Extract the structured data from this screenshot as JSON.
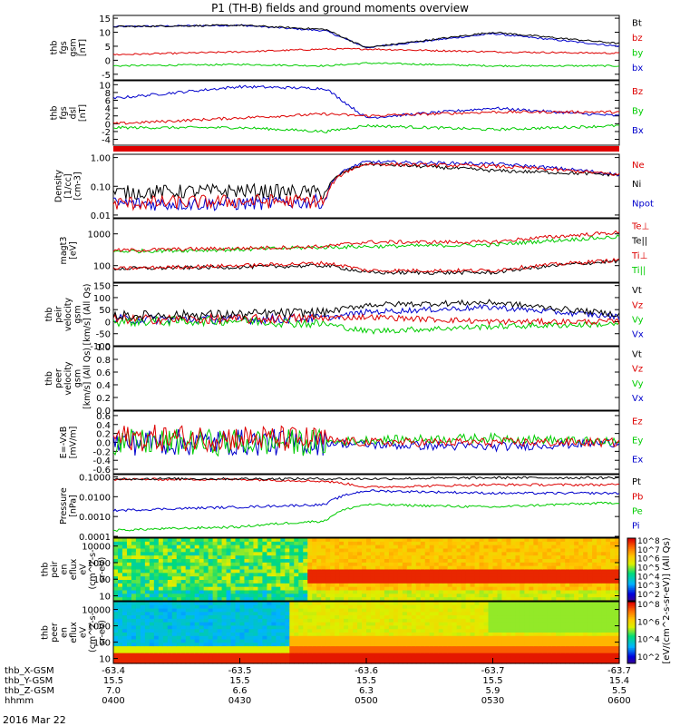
{
  "title": "P1 (TH-B) fields and ground moments overview",
  "date": "2016 Mar 22",
  "time_axis": {
    "ticks": [
      "0400",
      "0430",
      "0500",
      "0530",
      "0600"
    ],
    "rows": [
      {
        "label": "thb_X-GSM",
        "values": [
          "-63.4",
          "-63.5",
          "-63.6",
          "-63.7",
          "-63.7"
        ]
      },
      {
        "label": "thb_Y-GSM",
        "values": [
          "15.5",
          "15.5",
          "15.5",
          "15.5",
          "15.4"
        ]
      },
      {
        "label": "thb_Z-GSM",
        "values": [
          "7.0",
          "6.6",
          "6.3",
          "5.9",
          "5.5"
        ]
      },
      {
        "label": "hhmm",
        "values": [
          "0400",
          "0430",
          "0500",
          "0530",
          "0600"
        ]
      }
    ]
  },
  "colors": {
    "black": "#000000",
    "red": "#dd0000",
    "green": "#00cc00",
    "blue": "#0000cc"
  },
  "panels": [
    {
      "id": "fgs-gsm",
      "ylabel": [
        "thb",
        "fgs",
        "gsm",
        "[nT]"
      ],
      "ticks": [
        "15",
        "10",
        "5",
        "0",
        "-5"
      ],
      "tickvals": [
        15,
        10,
        5,
        0,
        -5
      ],
      "ylim": [
        -7,
        16
      ],
      "legend": [
        {
          "t": "Bt",
          "c": "black"
        },
        {
          "t": "bz",
          "c": "red"
        },
        {
          "t": "by",
          "c": "green"
        },
        {
          "t": "bx",
          "c": "blue"
        }
      ]
    },
    {
      "id": "fgs-dsl",
      "ylabel": [
        "thb",
        "fgs",
        "dsl",
        "[nT]"
      ],
      "ticks": [
        "10",
        "8",
        "6",
        "4",
        "2",
        "0",
        "-2",
        "-4"
      ],
      "tickvals": [
        10,
        8,
        6,
        4,
        2,
        0,
        -2,
        -4
      ],
      "ylim": [
        -5.5,
        11
      ],
      "legend": [
        {
          "t": "Bz",
          "c": "red"
        },
        {
          "t": "By",
          "c": "green"
        },
        {
          "t": "Bx",
          "c": "blue"
        }
      ]
    },
    {
      "id": "density",
      "ylabel": [
        "Density",
        "[1/cc]",
        "[cm-3]"
      ],
      "ticks": [
        "1.00",
        "0.10",
        "0.01"
      ],
      "tickvals": [
        1,
        0.1,
        0.01
      ],
      "ylim": [
        0.008,
        1.3
      ],
      "log": true,
      "legend": [
        {
          "t": "Ne",
          "c": "red"
        },
        {
          "t": "Ni",
          "c": "black"
        },
        {
          "t": "Npot",
          "c": "blue"
        }
      ]
    },
    {
      "id": "temperature",
      "ylabel": [
        "magt3",
        "[eV]"
      ],
      "ticks": [
        "1000",
        "100"
      ],
      "tickvals": [
        1000,
        100
      ],
      "ylim": [
        30,
        3000
      ],
      "log": true,
      "legend": [
        {
          "t": "Te⊥",
          "c": "red"
        },
        {
          "t": "Te||",
          "c": "black"
        },
        {
          "t": "Ti⊥",
          "c": "red"
        },
        {
          "t": "Ti||",
          "c": "green"
        }
      ]
    },
    {
      "id": "peir-velocity",
      "ylabel": [
        "thb",
        "peir",
        "velocity",
        "gsm",
        "[km/s] (All Qs)"
      ],
      "ticks": [
        "150",
        "100",
        "50",
        "0",
        "-50",
        "-100"
      ],
      "tickvals": [
        150,
        100,
        50,
        0,
        -50,
        -100
      ],
      "ylim": [
        -100,
        160
      ],
      "legend": [
        {
          "t": "Vt",
          "c": "black"
        },
        {
          "t": "Vz",
          "c": "red"
        },
        {
          "t": "Vy",
          "c": "green"
        },
        {
          "t": "Vx",
          "c": "blue"
        }
      ]
    },
    {
      "id": "peer-velocity",
      "ylabel": [
        "thb",
        "peer",
        "velocity",
        "gsm",
        "[km/s] (All Qs)"
      ],
      "ticks": [
        "1.0",
        "0.8",
        "0.6",
        "0.4",
        "0.2",
        "0.0"
      ],
      "tickvals": [
        1,
        0.8,
        0.6,
        0.4,
        0.2,
        0
      ],
      "ylim": [
        0,
        1
      ],
      "legend": [
        {
          "t": "Vt",
          "c": "black"
        },
        {
          "t": "Vz",
          "c": "red"
        },
        {
          "t": "Vy",
          "c": "green"
        },
        {
          "t": "Vx",
          "c": "blue"
        }
      ]
    },
    {
      "id": "efield",
      "ylabel": [
        "E=-VxB",
        "[mV/m]"
      ],
      "ticks": [
        "0.6",
        "0.4",
        "0.2",
        "0.0",
        "-0.2",
        "-0.4",
        "-0.6"
      ],
      "tickvals": [
        0.6,
        0.4,
        0.2,
        0,
        -0.2,
        -0.4,
        -0.6
      ],
      "ylim": [
        -0.7,
        0.7
      ],
      "legend": [
        {
          "t": "Ez",
          "c": "red"
        },
        {
          "t": "Ey",
          "c": "green"
        },
        {
          "t": "Ex",
          "c": "blue"
        }
      ]
    },
    {
      "id": "pressure",
      "ylabel": [
        "Pressure",
        "[nPa]"
      ],
      "ticks": [
        "0.1000",
        "0.0100",
        "0.0010",
        "0.0001"
      ],
      "tickvals": [
        0.1,
        0.01,
        0.001,
        0.0001
      ],
      "ylim": [
        9e-05,
        0.13
      ],
      "log": true,
      "legend": [
        {
          "t": "Pt",
          "c": "black"
        },
        {
          "t": "Pb",
          "c": "red"
        },
        {
          "t": "Pe",
          "c": "green"
        },
        {
          "t": "Pi",
          "c": "blue"
        }
      ]
    },
    {
      "id": "ion-spectrogram",
      "ylabel": [
        "thb",
        "peir",
        "en",
        "eflux",
        "eV",
        "(cm^2-s-",
        "sr-eV)"
      ],
      "ticks": [
        "10000",
        "1000",
        "100",
        "10"
      ],
      "tickvals": [
        10000,
        1000,
        100,
        10
      ],
      "ylim": [
        5,
        30000
      ],
      "log": true,
      "colorbar": {
        "ticks": [
          "10^8",
          "10^7",
          "10^6",
          "10^5",
          "10^4",
          "10^3",
          "10^2"
        ]
      }
    },
    {
      "id": "electron-spectrogram",
      "ylabel": [
        "thb",
        "peer",
        "en",
        "eflux",
        "eV",
        "(cm^2-s-",
        "sr-eV)"
      ],
      "ticks": [
        "10000",
        "1000",
        "100",
        "10"
      ],
      "tickvals": [
        10000,
        1000,
        100,
        10
      ],
      "ylim": [
        5,
        30000
      ],
      "log": true,
      "colorbar": {
        "ticks": [
          "10^8",
          "10^6",
          "10^4",
          "10^2"
        ]
      }
    }
  ],
  "colorbar_label": "[eV/(cm^2-s-sr-eV)] (All Qs)",
  "chart_data": [
    {
      "type": "line",
      "panel": "fgs-gsm",
      "x": [
        "0400",
        "0430",
        "0450",
        "0500",
        "0530",
        "0600"
      ],
      "series": [
        {
          "name": "Bt",
          "values": [
            12,
            12.5,
            11,
            4.5,
            10,
            6
          ]
        },
        {
          "name": "bz",
          "values": [
            2,
            3,
            4,
            4,
            3,
            2.5
          ]
        },
        {
          "name": "by",
          "values": [
            -2,
            -1.5,
            -2,
            -1,
            -2,
            -2
          ]
        },
        {
          "name": "bx",
          "values": [
            12,
            12.5,
            10.5,
            4.5,
            9.5,
            5
          ]
        }
      ]
    },
    {
      "type": "line",
      "panel": "fgs-dsl",
      "x": [
        "0400",
        "0430",
        "0450",
        "0500",
        "0530",
        "0600"
      ],
      "series": [
        {
          "name": "Bz",
          "values": [
            0,
            1.5,
            2.5,
            2,
            3,
            3
          ]
        },
        {
          "name": "By",
          "values": [
            -1,
            -1,
            -2,
            -0.5,
            -1.5,
            -0.5
          ]
        },
        {
          "name": "Bx",
          "values": [
            6.5,
            9.5,
            9,
            1.5,
            4,
            2
          ]
        }
      ]
    },
    {
      "type": "line",
      "panel": "density",
      "x": [
        "0400",
        "0430",
        "0450",
        "0500",
        "0530",
        "0600"
      ],
      "series": [
        {
          "name": "Ne",
          "values": [
            0.025,
            0.03,
            0.03,
            0.6,
            0.5,
            0.25
          ]
        },
        {
          "name": "Ni",
          "values": [
            0.06,
            0.07,
            0.06,
            0.6,
            0.35,
            0.25
          ]
        },
        {
          "name": "Npot",
          "values": [
            0.025,
            0.025,
            0.03,
            0.7,
            0.6,
            0.25
          ]
        }
      ]
    },
    {
      "type": "line",
      "panel": "temperature",
      "x": [
        "0400",
        "0430",
        "0450",
        "0500",
        "0530",
        "0600"
      ],
      "series": [
        {
          "name": "Te⊥",
          "values": [
            80,
            100,
            120,
            70,
            70,
            150
          ]
        },
        {
          "name": "Te||",
          "values": [
            80,
            90,
            100,
            60,
            60,
            140
          ]
        },
        {
          "name": "Ti⊥",
          "values": [
            300,
            350,
            400,
            550,
            550,
            1100
          ]
        },
        {
          "name": "Ti||",
          "values": [
            280,
            320,
            380,
            400,
            450,
            800
          ]
        }
      ]
    },
    {
      "type": "line",
      "panel": "peir-velocity",
      "x": [
        "0400",
        "0430",
        "0450",
        "0500",
        "0530",
        "0600"
      ],
      "series": [
        {
          "name": "Vt",
          "values": [
            25,
            30,
            40,
            70,
            80,
            30
          ]
        },
        {
          "name": "Vz",
          "values": [
            10,
            10,
            15,
            20,
            0,
            0
          ]
        },
        {
          "name": "Vy",
          "values": [
            0,
            5,
            -10,
            -40,
            -20,
            -10
          ]
        },
        {
          "name": "Vx",
          "values": [
            10,
            10,
            15,
            40,
            60,
            20
          ]
        }
      ]
    },
    {
      "type": "line",
      "panel": "efield",
      "x": [
        "0400",
        "0430",
        "0450",
        "0500",
        "0530",
        "0600"
      ],
      "series": [
        {
          "name": "Ez",
          "values": [
            0.1,
            0.1,
            0.05,
            0,
            0,
            0
          ]
        },
        {
          "name": "Ey",
          "values": [
            0,
            0,
            0,
            0.05,
            0.1,
            0
          ]
        },
        {
          "name": "Ex",
          "values": [
            0,
            0,
            0,
            -0.05,
            -0.1,
            0
          ]
        }
      ]
    },
    {
      "type": "line",
      "panel": "pressure",
      "x": [
        "0400",
        "0430",
        "0450",
        "0500",
        "0530",
        "0600"
      ],
      "series": [
        {
          "name": "Pt",
          "values": [
            0.08,
            0.08,
            0.08,
            0.08,
            0.09,
            0.09
          ]
        },
        {
          "name": "Pb",
          "values": [
            0.075,
            0.075,
            0.06,
            0.03,
            0.04,
            0.04
          ]
        },
        {
          "name": "Pe",
          "values": [
            0.0002,
            0.0003,
            0.0006,
            0.004,
            0.003,
            0.005
          ]
        },
        {
          "name": "Pi",
          "values": [
            0.002,
            0.003,
            0.004,
            0.02,
            0.015,
            0.015
          ]
        }
      ]
    },
    {
      "type": "heatmap",
      "panel": "ion-spectrogram",
      "x": [
        "0400",
        "0430",
        "0500",
        "0530",
        "0600"
      ],
      "y_range": [
        10,
        10000
      ]
    },
    {
      "type": "heatmap",
      "panel": "electron-spectrogram",
      "x": [
        "0400",
        "0430",
        "0500",
        "0530",
        "0600"
      ],
      "y_range": [
        10,
        10000
      ]
    }
  ]
}
